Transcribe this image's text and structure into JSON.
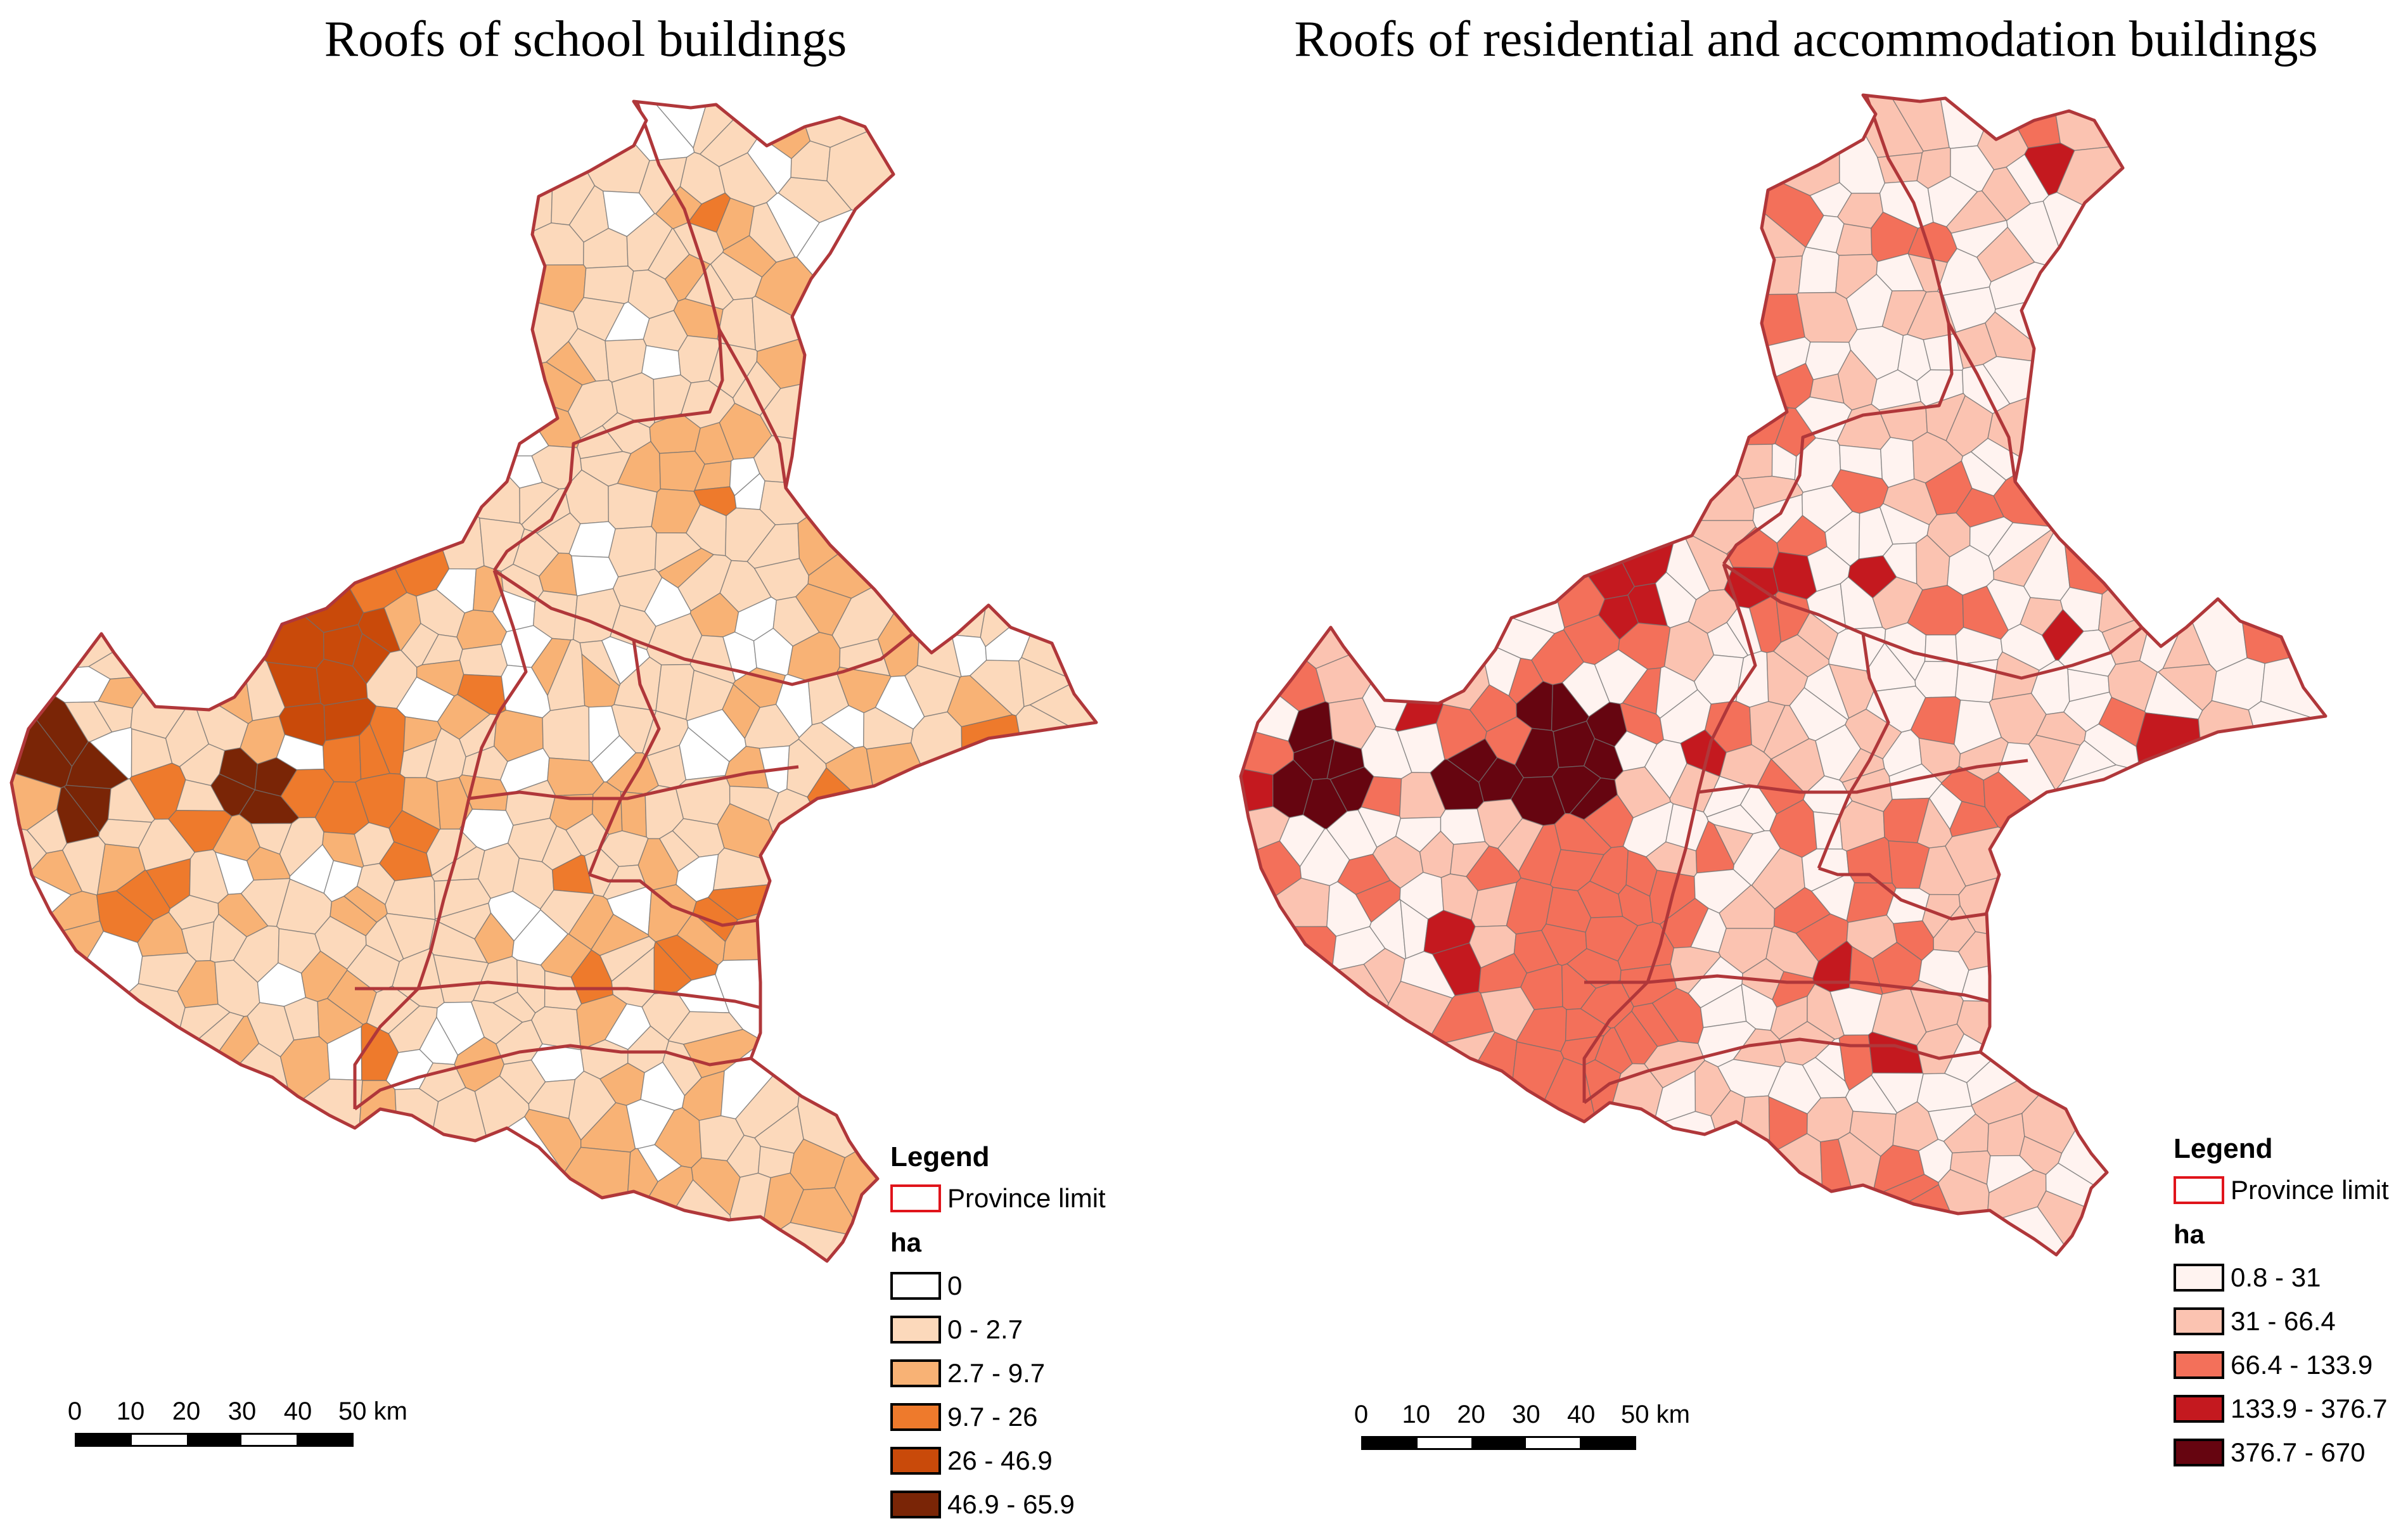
{
  "maps": [
    {
      "title": "Roofs of school buildings",
      "legend": {
        "heading": "Legend",
        "province_label": "Province limit",
        "unit": "ha",
        "classes": [
          {
            "label": "0",
            "color": "#ffffff"
          },
          {
            "label": "0 - 2.7",
            "color": "#fcd9bb"
          },
          {
            "label": "2.7 - 9.7",
            "color": "#f8b275"
          },
          {
            "label": "9.7 - 26",
            "color": "#ee7a2c"
          },
          {
            "label": "26 - 46.9",
            "color": "#c94a0a"
          },
          {
            "label": "46.9 - 65.9",
            "color": "#7a2506"
          }
        ]
      },
      "scale": {
        "ticks": [
          "0",
          "10",
          "20",
          "30",
          "40",
          "50 km"
        ]
      }
    },
    {
      "title": "Roofs of residential and accommodation buildings",
      "legend": {
        "heading": "Legend",
        "province_label": "Province limit",
        "unit": "ha",
        "classes": [
          {
            "label": "0.8 - 31",
            "color": "#fff3f0"
          },
          {
            "label": "31 - 66.4",
            "color": "#fbc3b1"
          },
          {
            "label": "66.4 - 133.9",
            "color": "#f3705a"
          },
          {
            "label": "133.9 - 376.7",
            "color": "#c4191f"
          },
          {
            "label": "376.7 - 670",
            "color": "#660510"
          }
        ]
      },
      "scale": {
        "ticks": [
          "0",
          "10",
          "20",
          "30",
          "40",
          "50 km"
        ]
      }
    }
  ],
  "colors": {
    "province_border": "#b0373a",
    "municipal_border": "#6f6f6f",
    "province_legend": "#e0141b"
  }
}
